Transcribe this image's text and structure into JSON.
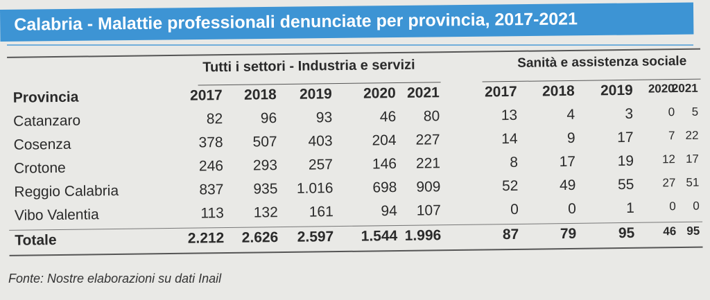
{
  "title": "Calabria - Malattie professionali denunciate per provincia, 2017-2021",
  "groups": {
    "all_sectors": "Tutti i settori - Industria e servizi",
    "health": "Sanità e assistenza sociale"
  },
  "columns": {
    "provincia": "Provincia",
    "years_all": [
      "2017",
      "2018",
      "2019",
      "2020",
      "2021"
    ],
    "years_health": [
      "2017",
      "2018",
      "2019",
      "2020",
      "2021"
    ]
  },
  "rows": [
    {
      "name": "Catanzaro",
      "all": [
        "82",
        "96",
        "93",
        "46",
        "80"
      ],
      "health": [
        "13",
        "4",
        "3",
        "0",
        "5"
      ]
    },
    {
      "name": "Cosenza",
      "all": [
        "378",
        "507",
        "403",
        "204",
        "227"
      ],
      "health": [
        "14",
        "9",
        "17",
        "7",
        "22"
      ]
    },
    {
      "name": "Crotone",
      "all": [
        "246",
        "293",
        "257",
        "146",
        "221"
      ],
      "health": [
        "8",
        "17",
        "19",
        "12",
        "17"
      ]
    },
    {
      "name": "Reggio Calabria",
      "all": [
        "837",
        "935",
        "1.016",
        "698",
        "909"
      ],
      "health": [
        "52",
        "49",
        "55",
        "27",
        "51"
      ]
    },
    {
      "name": "Vibo Valentia",
      "all": [
        "113",
        "132",
        "161",
        "94",
        "107"
      ],
      "health": [
        "0",
        "0",
        "1",
        "0",
        "0"
      ]
    }
  ],
  "total": {
    "name": "Totale",
    "all": [
      "2.212",
      "2.626",
      "2.597",
      "1.544",
      "1.996"
    ],
    "health": [
      "87",
      "79",
      "95",
      "46",
      "95"
    ]
  },
  "footnote": "Fonte: Nostre elaborazioni su dati Inail"
}
